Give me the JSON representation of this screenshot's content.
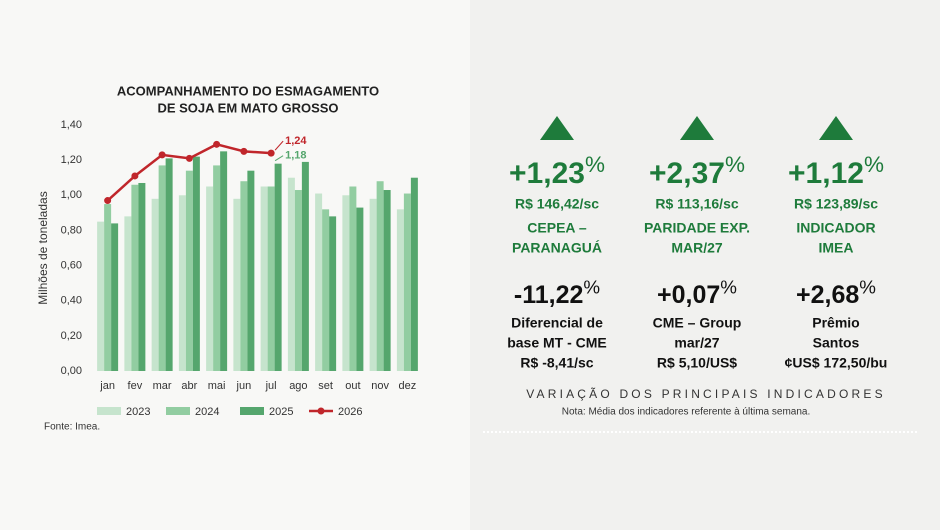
{
  "chart_data": {
    "type": "bar",
    "title": [
      "ACOMPANHAMENTO DO ESMAGAMENTO",
      "DE SOJA EM MATO GROSSO"
    ],
    "ylabel": "Milhões de toneladas",
    "source": "Fonte: Imea.",
    "categories": [
      "jan",
      "fev",
      "mar",
      "abr",
      "mai",
      "jun",
      "jul",
      "ago",
      "set",
      "out",
      "nov",
      "dez"
    ],
    "ylim": [
      0,
      1.4
    ],
    "yticks": [
      {
        "value": 0,
        "label": "0,00"
      },
      {
        "value": 0.2,
        "label": "0,20"
      },
      {
        "value": 0.4,
        "label": "0,40"
      },
      {
        "value": 0.6,
        "label": "0,60"
      },
      {
        "value": 0.8,
        "label": "0,80"
      },
      {
        "value": 1,
        "label": "1,00"
      },
      {
        "value": 1.2,
        "label": "1,20"
      },
      {
        "value": 1.4,
        "label": "1,40"
      }
    ],
    "series": [
      {
        "name": "2023",
        "color": "#c6e4cd",
        "type": "bar",
        "values": [
          0.85,
          0.88,
          0.98,
          1.0,
          1.05,
          0.98,
          1.05,
          1.1,
          1.01,
          1.0,
          0.98,
          0.92
        ]
      },
      {
        "name": "2024",
        "color": "#92cda1",
        "type": "bar",
        "values": [
          0.95,
          1.06,
          1.17,
          1.14,
          1.17,
          1.08,
          1.05,
          1.03,
          0.92,
          1.05,
          1.08,
          1.01
        ]
      },
      {
        "name": "2025",
        "color": "#55a66d",
        "type": "bar",
        "values": [
          0.84,
          1.07,
          1.21,
          1.22,
          1.25,
          1.14,
          1.18,
          1.19,
          0.88,
          0.93,
          1.03,
          1.1
        ],
        "value_labels": [
          null,
          null,
          null,
          null,
          null,
          null,
          "1,18",
          null,
          null,
          null,
          null,
          null
        ]
      },
      {
        "name": "2026",
        "color": "#c0262b",
        "type": "line",
        "values": [
          0.97,
          1.11,
          1.23,
          1.21,
          1.29,
          1.25,
          1.24,
          null,
          null,
          null,
          null,
          null
        ],
        "value_labels": [
          null,
          null,
          null,
          null,
          null,
          null,
          "1,24",
          null,
          null,
          null,
          null,
          null
        ]
      }
    ]
  },
  "indicators": {
    "top": [
      {
        "change": "+1,23",
        "unit": "%",
        "price": "R$ 146,42/sc",
        "label": [
          "CEPEA –",
          "PARANAGUÁ"
        ]
      },
      {
        "change": "+2,37",
        "unit": "%",
        "price": "R$ 113,16/sc",
        "label": [
          "PARIDADE EXP.",
          "MAR/27"
        ]
      },
      {
        "change": "+1,12",
        "unit": "%",
        "price": "R$ 123,89/sc",
        "label": [
          "INDICADOR",
          "IMEA"
        ]
      }
    ],
    "bottom": [
      {
        "change": "-11,22",
        "unit": "%",
        "label": [
          "Diferencial de",
          "base MT - CME",
          "R$ -8,41/sc"
        ]
      },
      {
        "change": "+0,07",
        "unit": "%",
        "label": [
          "CME – Group",
          "mar/27",
          "R$ 5,10/US$"
        ]
      },
      {
        "change": "+2,68",
        "unit": "%",
        "label": [
          "Prêmio",
          "Santos",
          "¢US$ 172,50/bu"
        ]
      }
    ],
    "title": "VARIAÇÃO DOS PRINCIPAIS INDICADORES",
    "note": "Nota: Média dos indicadores referente à última semana."
  }
}
